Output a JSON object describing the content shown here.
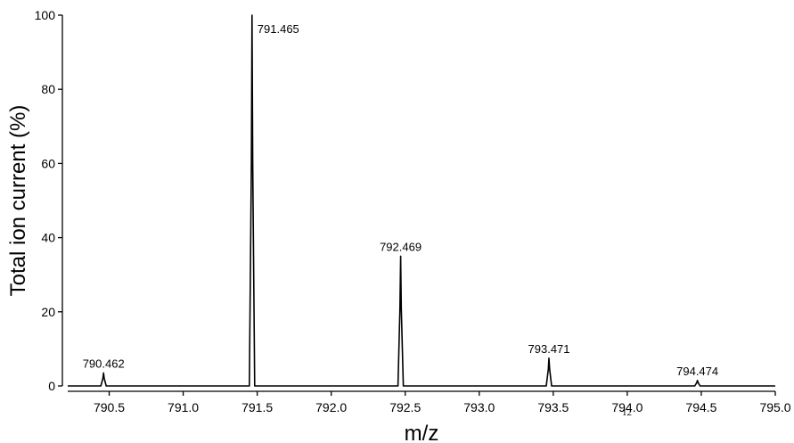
{
  "chart_data": {
    "type": "line",
    "title": "",
    "xlabel": "m/z",
    "ylabel": "Total ion current (%)",
    "xlim": [
      790.22,
      795.0
    ],
    "ylim": [
      0,
      100
    ],
    "xticks": [
      790.5,
      791.0,
      791.5,
      792.0,
      792.5,
      793.0,
      793.5,
      794.0,
      794.5,
      795.0
    ],
    "xtick_labels": [
      "790.5",
      "791.0",
      "791.5",
      "792.0",
      "792.5",
      "793.0",
      "793.5",
      "794.0",
      "794.5",
      "795.0"
    ],
    "yticks": [
      0,
      20,
      40,
      60,
      80,
      100
    ],
    "ytick_labels": [
      "0",
      "20",
      "40",
      "60",
      "80",
      "100"
    ],
    "grid": false,
    "series": [
      {
        "peaks": [
          {
            "x": 790.462,
            "y": 3.5,
            "label": "790.462"
          },
          {
            "x": 791.465,
            "y": 100,
            "label": "791.465"
          },
          {
            "x": 792.469,
            "y": 35,
            "label": "792.469"
          },
          {
            "x": 793.471,
            "y": 7.5,
            "label": "793.471"
          },
          {
            "x": 794.474,
            "y": 1.5,
            "label": "794.474"
          }
        ]
      }
    ]
  },
  "footnote": "12"
}
